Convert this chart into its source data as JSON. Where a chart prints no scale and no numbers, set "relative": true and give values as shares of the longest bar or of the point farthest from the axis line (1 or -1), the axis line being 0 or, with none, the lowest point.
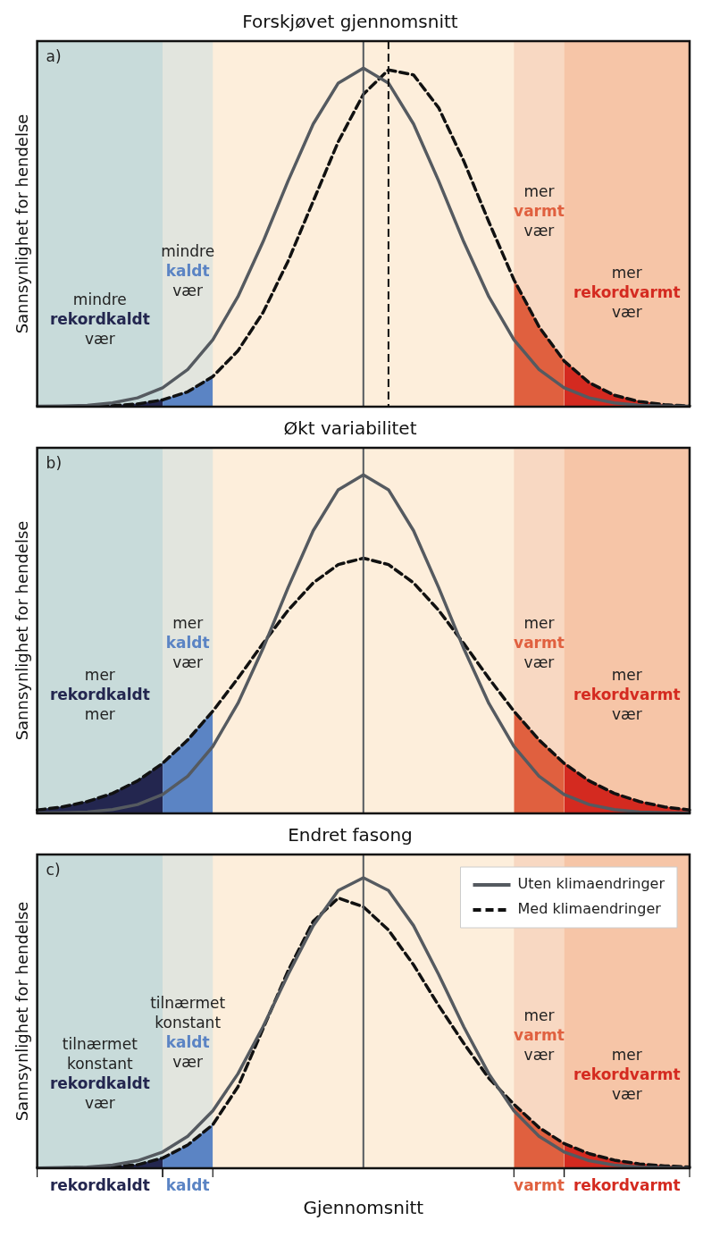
{
  "chart_data": [
    {
      "type": "line",
      "title": "Forskjøvet gjennomsnitt",
      "ylabel": "Sannsynlighet for hendelse",
      "relative": true,
      "legend": false,
      "categories": [
        null,
        null,
        null,
        null,
        null,
        null,
        null,
        null,
        null,
        null,
        null,
        null,
        null,
        null,
        null,
        null,
        null,
        null,
        null,
        null,
        null,
        null,
        null,
        null,
        null,
        null,
        null
      ],
      "series": [
        {
          "type": "area",
          "color": "#23264f",
          "values": [
            0,
            0,
            0.001,
            0.003,
            0.008,
            0.02,
            null,
            null,
            null,
            null,
            null,
            null,
            null,
            null,
            null,
            null,
            null,
            null,
            null,
            null,
            null,
            null,
            null,
            null,
            null,
            null,
            null
          ]
        },
        {
          "type": "area",
          "color": "#5b84c4",
          "values": [
            null,
            null,
            null,
            null,
            null,
            0.02,
            0.044,
            0.089,
            null,
            null,
            null,
            null,
            null,
            null,
            null,
            null,
            null,
            null,
            null,
            null,
            null,
            null,
            null,
            null,
            null,
            null,
            null
          ]
        },
        {
          "type": "area",
          "color": "#e0603f",
          "values": [
            null,
            null,
            null,
            null,
            null,
            null,
            null,
            null,
            null,
            null,
            null,
            null,
            null,
            null,
            null,
            null,
            null,
            null,
            null,
            0.375,
            0.236,
            0.135,
            null,
            null,
            null,
            null,
            null
          ]
        },
        {
          "type": "area",
          "color": "#d42a20",
          "values": [
            null,
            null,
            null,
            null,
            null,
            null,
            null,
            null,
            null,
            null,
            null,
            null,
            null,
            null,
            null,
            null,
            null,
            null,
            null,
            null,
            null,
            0.135,
            0.071,
            0.034,
            0.015,
            0.006,
            0.002
          ]
        },
        {
          "color": "#555a60",
          "line_style": "solid",
          "values": [
            0.001,
            0.002,
            0.004,
            0.011,
            0.026,
            0.056,
            0.11,
            0.198,
            0.325,
            0.487,
            0.667,
            0.835,
            0.956,
            1,
            0.956,
            0.835,
            0.667,
            0.487,
            0.325,
            0.198,
            0.11,
            0.056,
            0.026,
            0.011,
            0.004,
            0.002,
            0.001
          ]
        },
        {
          "color": "#111111",
          "line_style": "dashed",
          "values": [
            0,
            0,
            0.001,
            0.003,
            0.008,
            0.02,
            0.044,
            0.089,
            0.165,
            0.278,
            0.43,
            0.607,
            0.783,
            0.923,
            0.995,
            0.98,
            0.883,
            0.726,
            0.546,
            0.375,
            0.236,
            0.135,
            0.071,
            0.034,
            0.015,
            0.006,
            0.002
          ]
        }
      ],
      "annotations": [
        "a)",
        "mindre\nrekordkaldt\nvær",
        "mindre\nkaldt\nvær",
        "mer\nvarmt\nvær",
        "mer\nrekordvarmt\nvær"
      ]
    },
    {
      "type": "line",
      "title": "Økt variabilitet",
      "ylabel": "Sannsynlighet for hendelse",
      "relative": true,
      "legend": false,
      "categories": [
        null,
        null,
        null,
        null,
        null,
        null,
        null,
        null,
        null,
        null,
        null,
        null,
        null,
        null,
        null,
        null,
        null,
        null,
        null,
        null,
        null,
        null,
        null,
        null,
        null,
        null,
        null
      ],
      "series": [
        {
          "type": "area",
          "color": "#23264f",
          "values": [
            0.01,
            0.019,
            0.035,
            0.059,
            0.096,
            0.148,
            null,
            null,
            null,
            null,
            null,
            null,
            null,
            null,
            null,
            null,
            null,
            null,
            null,
            null,
            null,
            null,
            null,
            null,
            null,
            null,
            null
          ]
        },
        {
          "type": "area",
          "color": "#5b84c4",
          "values": [
            null,
            null,
            null,
            null,
            null,
            0.148,
            0.217,
            0.302,
            null,
            null,
            null,
            null,
            null,
            null,
            null,
            null,
            null,
            null,
            null,
            null,
            null,
            null,
            null,
            null,
            null,
            null,
            null
          ]
        },
        {
          "type": "area",
          "color": "#e0603f",
          "values": [
            null,
            null,
            null,
            null,
            null,
            null,
            null,
            null,
            null,
            null,
            null,
            null,
            null,
            null,
            null,
            null,
            null,
            null,
            null,
            0.302,
            0.217,
            0.148,
            null,
            null,
            null,
            null,
            null
          ]
        },
        {
          "type": "area",
          "color": "#d42a20",
          "values": [
            null,
            null,
            null,
            null,
            null,
            null,
            null,
            null,
            null,
            null,
            null,
            null,
            null,
            null,
            null,
            null,
            null,
            null,
            null,
            null,
            null,
            0.148,
            0.096,
            0.059,
            0.035,
            0.019,
            0.01
          ]
        },
        {
          "color": "#555a60",
          "line_style": "solid",
          "values": [
            0.001,
            0.002,
            0.004,
            0.011,
            0.026,
            0.056,
            0.11,
            0.198,
            0.325,
            0.487,
            0.667,
            0.835,
            0.956,
            1,
            0.956,
            0.835,
            0.667,
            0.487,
            0.325,
            0.198,
            0.11,
            0.056,
            0.026,
            0.011,
            0.004,
            0.002,
            0.001
          ]
        },
        {
          "color": "#111111",
          "line_style": "dashed",
          "values": [
            0.01,
            0.019,
            0.035,
            0.059,
            0.096,
            0.148,
            0.217,
            0.302,
            0.399,
            0.502,
            0.6,
            0.681,
            0.735,
            0.754,
            0.735,
            0.681,
            0.6,
            0.502,
            0.399,
            0.302,
            0.217,
            0.148,
            0.096,
            0.059,
            0.035,
            0.019,
            0.01
          ]
        }
      ],
      "annotations": [
        "b)",
        "mer\nrekordkaldt\nmer",
        "mer\nkaldt\nvær",
        "mer\nvarmt\nvær",
        "mer\nrekordvarmt\nvær"
      ]
    },
    {
      "type": "line",
      "title": "Endret fasong",
      "ylabel": "Sannsynlighet for hendelse",
      "xlabel": "Gjennomsnitt",
      "relative": true,
      "legend": "top right",
      "categories": [
        null,
        null,
        null,
        null,
        null,
        null,
        null,
        null,
        null,
        null,
        null,
        null,
        null,
        null,
        null,
        null,
        null,
        null,
        null,
        null,
        null,
        null,
        null,
        null,
        null,
        null,
        null
      ],
      "series": [
        {
          "type": "area",
          "color": "#23264f",
          "values": [
            0,
            0.001,
            0.002,
            0.005,
            0.012,
            0.035,
            null,
            null,
            null,
            null,
            null,
            null,
            null,
            null,
            null,
            null,
            null,
            null,
            null,
            null,
            null,
            null,
            null,
            null,
            null,
            null,
            null
          ]
        },
        {
          "type": "area",
          "color": "#5b84c4",
          "values": [
            null,
            null,
            null,
            null,
            null,
            0.035,
            0.08,
            0.15,
            null,
            null,
            null,
            null,
            null,
            null,
            null,
            null,
            null,
            null,
            null,
            null,
            null,
            null,
            null,
            null,
            null,
            null,
            null
          ]
        },
        {
          "type": "area",
          "color": "#e0603f",
          "values": [
            null,
            null,
            null,
            null,
            null,
            null,
            null,
            null,
            null,
            null,
            null,
            null,
            null,
            null,
            null,
            null,
            null,
            null,
            null,
            0.22,
            0.14,
            0.085,
            null,
            null,
            null,
            null,
            null
          ]
        },
        {
          "type": "area",
          "color": "#d42a20",
          "values": [
            null,
            null,
            null,
            null,
            null,
            null,
            null,
            null,
            null,
            null,
            null,
            null,
            null,
            null,
            null,
            null,
            null,
            null,
            null,
            null,
            null,
            0.085,
            0.05,
            0.028,
            0.015,
            0.008,
            0.004
          ]
        },
        {
          "name": "Uten klimaendringer",
          "color": "#555a60",
          "line_style": "solid",
          "values": [
            0.001,
            0.002,
            0.004,
            0.011,
            0.026,
            0.056,
            0.11,
            0.198,
            0.325,
            0.487,
            0.667,
            0.835,
            0.956,
            1,
            0.956,
            0.835,
            0.667,
            0.487,
            0.325,
            0.198,
            0.11,
            0.056,
            0.026,
            0.011,
            0.004,
            0.002,
            0.001
          ]
        },
        {
          "name": "Med klimaendringer",
          "color": "#111111",
          "line_style": "dashed",
          "values": [
            0,
            0.001,
            0.002,
            0.005,
            0.012,
            0.035,
            0.08,
            0.15,
            0.28,
            0.48,
            0.68,
            0.85,
            0.93,
            0.9,
            0.82,
            0.7,
            0.56,
            0.43,
            0.31,
            0.22,
            0.14,
            0.085,
            0.05,
            0.028,
            0.015,
            0.008,
            0.004
          ]
        }
      ],
      "annotations": [
        "c)",
        "tilnærmet\nkonstant\nrekordkaldt\nvær",
        "tilnærmet\nkonstant\nkaldt\nvær",
        "mer\nvarmt\nvær",
        "mer\nrekordvarmt\nvær",
        "rekordkaldt",
        "kaldt",
        "varmt",
        "rekordvarmt"
      ]
    }
  ]
}
